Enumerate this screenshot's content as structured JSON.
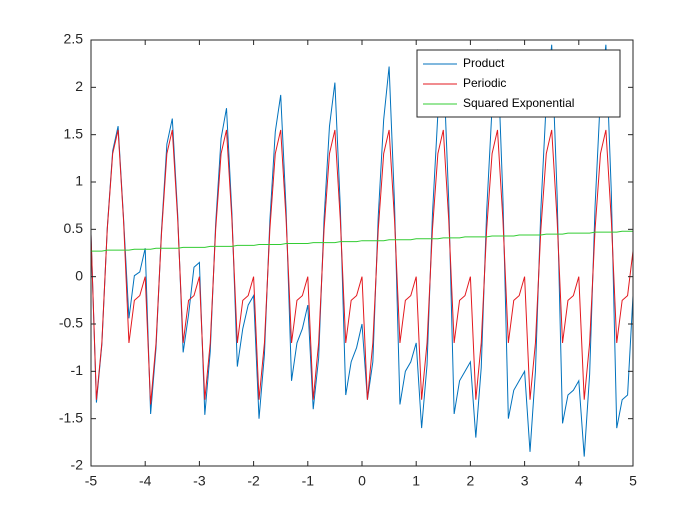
{
  "chart_data": {
    "type": "line",
    "x": [
      -5,
      -4.9,
      -4.8,
      -4.7,
      -4.6,
      -4.5,
      -4.4,
      -4.3,
      -4.2,
      -4.1,
      -4,
      -3.9,
      -3.8,
      -3.7,
      -3.6,
      -3.5,
      -3.4,
      -3.3,
      -3.2,
      -3.1,
      -3,
      -2.9,
      -2.8,
      -2.7,
      -2.6,
      -2.5,
      -2.4,
      -2.3,
      -2.2,
      -2.1,
      -2,
      -1.9,
      -1.8,
      -1.7,
      -1.6,
      -1.5,
      -1.4,
      -1.3,
      -1.2,
      -1.1,
      -1,
      -0.9,
      -0.8,
      -0.7,
      -0.6,
      -0.5,
      -0.4,
      -0.3,
      -0.2,
      -0.1,
      0,
      0.1,
      0.2,
      0.3,
      0.4,
      0.5,
      0.6,
      0.7,
      0.8,
      0.9,
      1,
      1.1,
      1.2,
      1.3,
      1.4,
      1.5,
      1.6,
      1.7,
      1.8,
      1.9,
      2,
      2.1,
      2.2,
      2.3,
      2.4,
      2.5,
      2.6,
      2.7,
      2.8,
      2.9,
      3,
      3.1,
      3.2,
      3.3,
      3.4,
      3.5,
      3.6,
      3.7,
      3.8,
      3.9,
      4,
      4.1,
      4.2,
      4.3,
      4.4,
      4.5,
      4.6,
      4.7,
      4.8,
      4.9,
      5
    ],
    "series": [
      {
        "name": "Product",
        "color": "#0072bd",
        "values": [
          0.45,
          -1.33,
          -0.72,
          0.51,
          1.33,
          1.59,
          0.62,
          -0.44,
          0.01,
          0.05,
          0.3,
          -1.45,
          -0.75,
          0.48,
          1.4,
          1.67,
          0.65,
          -0.8,
          -0.4,
          0.1,
          0.15,
          -1.46,
          -0.79,
          0.56,
          1.46,
          1.78,
          0.67,
          -0.95,
          -0.55,
          -0.3,
          -0.2,
          -1.5,
          -0.82,
          0.59,
          1.53,
          1.92,
          0.7,
          -1.1,
          -0.7,
          -0.55,
          -0.3,
          -1.4,
          -0.86,
          0.61,
          1.59,
          2.05,
          0.73,
          -1.25,
          -0.9,
          -0.75,
          -0.5,
          -1.3,
          -0.9,
          0.64,
          1.66,
          2.22,
          0.77,
          -1.35,
          -1.0,
          -0.9,
          -0.7,
          -1.6,
          -0.93,
          0.66,
          1.72,
          2.3,
          0.8,
          -1.45,
          -1.1,
          -1.0,
          -0.9,
          -1.7,
          -0.96,
          0.69,
          1.79,
          2.4,
          0.83,
          -1.5,
          -1.2,
          -1.1,
          -1.0,
          -1.85,
          -1.0,
          0.71,
          1.85,
          2.45,
          0.86,
          -1.55,
          -1.25,
          -1.2,
          -1.1,
          -1.9,
          -1.03,
          0.74,
          1.92,
          2.45,
          0.89,
          -1.6,
          -1.3,
          -1.25,
          -0.2
        ]
      },
      {
        "name": "Periodic",
        "color": "#e3191f",
        "values": [
          0.45,
          -1.3,
          -0.7,
          0.5,
          1.3,
          1.55,
          0.6,
          -0.7,
          -0.25,
          -0.2,
          0.0,
          -1.35,
          -0.7,
          0.45,
          1.3,
          1.55,
          0.6,
          -0.7,
          -0.25,
          -0.2,
          0.0,
          -1.3,
          -0.7,
          0.5,
          1.3,
          1.55,
          0.6,
          -0.7,
          -0.25,
          -0.2,
          0.0,
          -1.3,
          -0.7,
          0.5,
          1.3,
          1.55,
          0.6,
          -0.7,
          -0.25,
          -0.2,
          0.0,
          -1.3,
          -0.7,
          0.5,
          1.3,
          1.55,
          0.6,
          -0.7,
          -0.25,
          -0.2,
          0.0,
          -1.3,
          -0.7,
          0.5,
          1.3,
          1.55,
          0.6,
          -0.7,
          -0.25,
          -0.2,
          0.0,
          -1.3,
          -0.7,
          0.5,
          1.3,
          1.55,
          0.6,
          -0.7,
          -0.25,
          -0.2,
          0.0,
          -1.3,
          -0.7,
          0.5,
          1.3,
          1.55,
          0.6,
          -0.7,
          -0.25,
          -0.2,
          0.0,
          -1.3,
          -0.7,
          0.5,
          1.3,
          1.55,
          0.6,
          -0.7,
          -0.25,
          -0.2,
          0.0,
          -1.3,
          -0.7,
          0.5,
          1.3,
          1.55,
          0.6,
          -0.7,
          -0.25,
          -0.2,
          0.27
        ]
      },
      {
        "name": "Squared Exponential",
        "color": "#33cc33",
        "values": [
          0.27,
          0.27,
          0.27,
          0.28,
          0.28,
          0.28,
          0.28,
          0.28,
          0.29,
          0.29,
          0.29,
          0.29,
          0.3,
          0.3,
          0.3,
          0.3,
          0.3,
          0.31,
          0.31,
          0.31,
          0.31,
          0.31,
          0.32,
          0.32,
          0.32,
          0.32,
          0.32,
          0.33,
          0.33,
          0.33,
          0.33,
          0.34,
          0.34,
          0.34,
          0.34,
          0.34,
          0.35,
          0.35,
          0.35,
          0.35,
          0.35,
          0.36,
          0.36,
          0.36,
          0.36,
          0.36,
          0.37,
          0.37,
          0.37,
          0.37,
          0.38,
          0.38,
          0.38,
          0.38,
          0.38,
          0.39,
          0.39,
          0.39,
          0.39,
          0.39,
          0.4,
          0.4,
          0.4,
          0.4,
          0.4,
          0.41,
          0.41,
          0.41,
          0.41,
          0.42,
          0.42,
          0.42,
          0.42,
          0.42,
          0.43,
          0.43,
          0.43,
          0.43,
          0.43,
          0.44,
          0.44,
          0.44,
          0.44,
          0.44,
          0.45,
          0.45,
          0.45,
          0.45,
          0.46,
          0.46,
          0.46,
          0.46,
          0.46,
          0.47,
          0.47,
          0.47,
          0.47,
          0.47,
          0.48,
          0.48,
          0.48
        ]
      }
    ],
    "xlim": [
      -5,
      5
    ],
    "xticks": [
      -5,
      -4,
      -3,
      -2,
      -1,
      0,
      1,
      2,
      3,
      4,
      5
    ],
    "ylim": [
      -2,
      2.5
    ],
    "yticks": [
      -2,
      -1.5,
      -1,
      -0.5,
      0,
      0.5,
      1,
      1.5,
      2,
      2.5
    ],
    "legend": "northeast"
  }
}
